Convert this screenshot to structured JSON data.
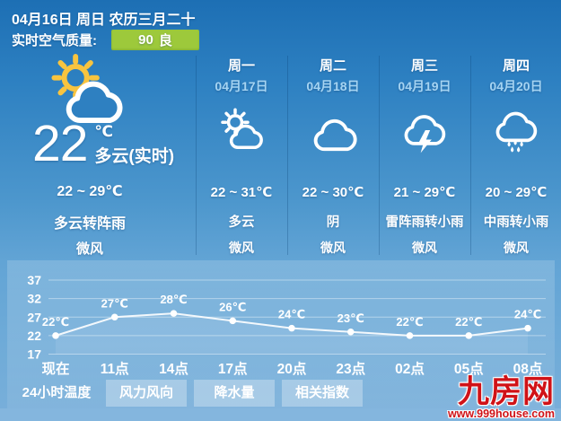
{
  "header": {
    "date_line": "04月16日 周日 农历三月二十",
    "air_quality_label": "实时空气质量:",
    "air_quality_value": "90",
    "air_quality_level": "良"
  },
  "current": {
    "icon": "sun-cloud-icon",
    "temperature": "22",
    "temperature_unit": "℃",
    "condition_now": "多云(实时)",
    "range": "22 ~ 29℃",
    "condition": "多云转阵雨",
    "wind": "微风"
  },
  "forecast": {
    "days": [
      {
        "weekday": "周一",
        "date": "04月17日",
        "icon": "sun-cloud-icon",
        "range": "22 ~ 31℃",
        "condition": "多云",
        "wind": "微风"
      },
      {
        "weekday": "周二",
        "date": "04月18日",
        "icon": "cloud-icon",
        "range": "22 ~ 30℃",
        "condition": "阴",
        "wind": "微风"
      },
      {
        "weekday": "周三",
        "date": "04月19日",
        "icon": "thunderstorm-icon",
        "range": "21 ~ 29℃",
        "condition": "雷阵雨转小雨",
        "wind": "微风"
      },
      {
        "weekday": "周四",
        "date": "04月20日",
        "icon": "rain-icon",
        "range": "20 ~ 29℃",
        "condition": "中雨转小雨",
        "wind": "微风"
      }
    ]
  },
  "chart_data": {
    "type": "line",
    "x": [
      "现在",
      "11点",
      "14点",
      "17点",
      "20点",
      "23点",
      "02点",
      "05点",
      "08点"
    ],
    "values": [
      22,
      27,
      28,
      26,
      24,
      23,
      22,
      22,
      24
    ],
    "point_labels": [
      "22℃",
      "27℃",
      "28℃",
      "26℃",
      "24℃",
      "23℃",
      "22℃",
      "22℃",
      "24℃"
    ],
    "y_ticks": [
      17,
      22,
      27,
      32,
      37
    ],
    "ylim": [
      17,
      37
    ],
    "title": "24小时温度",
    "grid": true,
    "line_color": "#ffffff"
  },
  "tabs": [
    {
      "label": "24小时温度",
      "active": true
    },
    {
      "label": "风力风向",
      "active": false
    },
    {
      "label": "降水量",
      "active": false
    },
    {
      "label": "相关指数",
      "active": false
    }
  ],
  "watermark": {
    "brand": "九房网",
    "url": "www.999house.com"
  },
  "colors": {
    "badge_green": "#9dc93b",
    "watermark_red": "#d01217",
    "date_light_blue": "#a6d4f2"
  }
}
